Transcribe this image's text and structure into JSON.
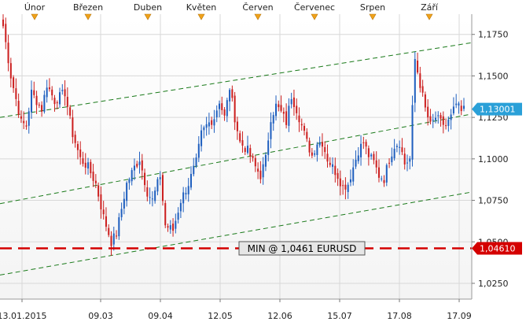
{
  "chart_data": {
    "type": "candlestick",
    "symbol": "EURUSD",
    "months": [
      "Únor",
      "Březen",
      "Duben",
      "Květen",
      "Červen",
      "Červenec",
      "Srpen",
      "Září"
    ],
    "date_ticks": [
      "13.01.2015",
      "09.03",
      "09.04",
      "12.05",
      "12.06",
      "15.07",
      "17.08",
      "17.09"
    ],
    "y_ticks": [
      "1,1750",
      "1,1500",
      "1,1250",
      "1,1000",
      "1,0750",
      "1,0500",
      "1,0250"
    ],
    "ylim": [
      1.0155,
      1.1872
    ],
    "grid": true,
    "current_price": {
      "value": 1.13001,
      "label": "1,13001"
    },
    "min_line": {
      "value": 1.0461,
      "label": "1,04610",
      "annotation": "MIN @ 1,0461 EURUSD"
    },
    "channel": {
      "upper": [
        1.125,
        1.17
      ],
      "middle": [
        1.073,
        1.127
      ],
      "lower": [
        1.03,
        1.08
      ]
    },
    "waypoints": [
      [
        0,
        1.18
      ],
      [
        3,
        1.15
      ],
      [
        7,
        1.122
      ],
      [
        9,
        1.12
      ],
      [
        11,
        1.14
      ],
      [
        15,
        1.13
      ],
      [
        17,
        1.145
      ],
      [
        20,
        1.135
      ],
      [
        24,
        1.14
      ],
      [
        27,
        1.115
      ],
      [
        30,
        1.1
      ],
      [
        33,
        1.095
      ],
      [
        36,
        1.085
      ],
      [
        39,
        1.065
      ],
      [
        42,
        1.05
      ],
      [
        44,
        1.055
      ],
      [
        46,
        1.07
      ],
      [
        48,
        1.085
      ],
      [
        51,
        1.095
      ],
      [
        53,
        1.1
      ],
      [
        56,
        1.08
      ],
      [
        58,
        1.075
      ],
      [
        61,
        1.09
      ],
      [
        63,
        1.06
      ],
      [
        66,
        1.057
      ],
      [
        69,
        1.075
      ],
      [
        72,
        1.085
      ],
      [
        75,
        1.098
      ],
      [
        77,
        1.115
      ],
      [
        79,
        1.12
      ],
      [
        82,
        1.125
      ],
      [
        84,
        1.135
      ],
      [
        86,
        1.125
      ],
      [
        88,
        1.143
      ],
      [
        90,
        1.125
      ],
      [
        92,
        1.11
      ],
      [
        95,
        1.105
      ],
      [
        98,
        1.095
      ],
      [
        100,
        1.09
      ],
      [
        102,
        1.1
      ],
      [
        104,
        1.125
      ],
      [
        106,
        1.132
      ],
      [
        108,
        1.128
      ],
      [
        110,
        1.122
      ],
      [
        112,
        1.138
      ],
      [
        114,
        1.13
      ],
      [
        116,
        1.12
      ],
      [
        118,
        1.11
      ],
      [
        120,
        1.102
      ],
      [
        122,
        1.11
      ],
      [
        124,
        1.11
      ],
      [
        126,
        1.1
      ],
      [
        128,
        1.095
      ],
      [
        130,
        1.09
      ],
      [
        132,
        1.083
      ],
      [
        134,
        1.085
      ],
      [
        136,
        1.095
      ],
      [
        138,
        1.105
      ],
      [
        140,
        1.11
      ],
      [
        142,
        1.102
      ],
      [
        144,
        1.098
      ],
      [
        146,
        1.09
      ],
      [
        148,
        1.088
      ],
      [
        150,
        1.1
      ],
      [
        152,
        1.108
      ],
      [
        154,
        1.11
      ],
      [
        156,
        1.097
      ],
      [
        158,
        1.1
      ],
      [
        160,
        1.16
      ],
      [
        162,
        1.145
      ],
      [
        164,
        1.13
      ],
      [
        166,
        1.12
      ],
      [
        168,
        1.125
      ],
      [
        170,
        1.122
      ],
      [
        172,
        1.12
      ],
      [
        174,
        1.125
      ],
      [
        176,
        1.133
      ],
      [
        178,
        1.128
      ],
      [
        179,
        1.13
      ]
    ]
  }
}
